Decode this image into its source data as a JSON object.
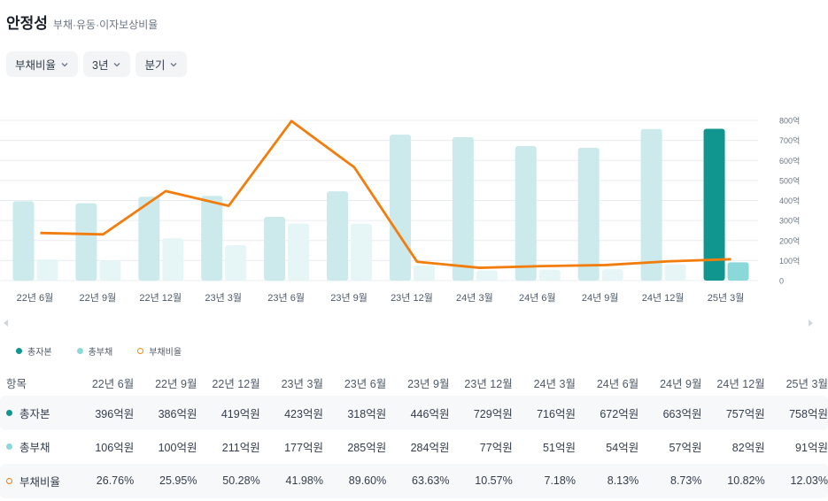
{
  "header": {
    "title": "안정성",
    "subtitle": "부채·유동·이자보상비율"
  },
  "filters": [
    {
      "label": "부채비율"
    },
    {
      "label": "3년"
    },
    {
      "label": "분기"
    }
  ],
  "colors": {
    "equity_highlight": "#10958f",
    "equity": "#cce9eb",
    "debt_highlight": "#8ad8d8",
    "debt": "#e6f6f6",
    "ratio_line": "#f27d0c",
    "grid": "#e9ecef"
  },
  "chart_data": {
    "type": "bar",
    "categories": [
      "22년 6월",
      "22년 9월",
      "22년 12월",
      "23년 3월",
      "23년 6월",
      "23년 9월",
      "23년 12월",
      "24년 3월",
      "24년 6월",
      "24년 9월",
      "24년 12월",
      "25년 3월"
    ],
    "series": [
      {
        "name": "총자본",
        "unit": "억원",
        "values": [
          396,
          386,
          419,
          423,
          318,
          446,
          729,
          716,
          672,
          663,
          757,
          758
        ]
      },
      {
        "name": "총부채",
        "unit": "억원",
        "values": [
          106,
          100,
          211,
          177,
          285,
          284,
          77,
          51,
          54,
          57,
          82,
          91
        ]
      },
      {
        "name": "부채비율",
        "unit": "%",
        "type": "line",
        "values": [
          26.76,
          25.95,
          50.28,
          41.98,
          89.6,
          63.63,
          10.57,
          7.18,
          8.13,
          8.73,
          10.82,
          12.03
        ]
      }
    ],
    "y_ticks": [
      "800억",
      "700억",
      "600억",
      "500억",
      "400억",
      "300억",
      "200억",
      "100억",
      "0"
    ],
    "ylim": [
      0,
      800
    ],
    "y2lim": [
      0,
      90
    ],
    "grid": true,
    "highlighted_category_index": 11
  },
  "legend": [
    {
      "label": "총자본",
      "marker": "dot",
      "color": "#10958f"
    },
    {
      "label": "총부채",
      "marker": "dot",
      "color": "#8ad8d8"
    },
    {
      "label": "부채비율",
      "marker": "ring",
      "color": "#f27d0c"
    }
  ],
  "table": {
    "header_label": "항목",
    "columns": [
      "22년 6월",
      "22년 9월",
      "22년 12월",
      "23년 3월",
      "23년 6월",
      "23년 9월",
      "23년 12월",
      "24년 3월",
      "24년 6월",
      "24년 9월",
      "24년 12월",
      "25년 3월"
    ],
    "rows": [
      {
        "label": "총자본",
        "marker": "dot",
        "color": "#10958f",
        "values": [
          "396억원",
          "386억원",
          "419억원",
          "423억원",
          "318억원",
          "446억원",
          "729억원",
          "716억원",
          "672억원",
          "663억원",
          "757억원",
          "758억원"
        ]
      },
      {
        "label": "총부채",
        "marker": "dot",
        "color": "#8ad8d8",
        "values": [
          "106억원",
          "100억원",
          "211억원",
          "177억원",
          "285억원",
          "284억원",
          "77억원",
          "51억원",
          "54억원",
          "57억원",
          "82억원",
          "91억원"
        ]
      },
      {
        "label": "부채비율",
        "marker": "ring",
        "color": "#f27d0c",
        "values": [
          "26.76%",
          "25.95%",
          "50.28%",
          "41.98%",
          "89.60%",
          "63.63%",
          "10.57%",
          "7.18%",
          "8.13%",
          "8.73%",
          "10.82%",
          "12.03%"
        ]
      }
    ]
  }
}
